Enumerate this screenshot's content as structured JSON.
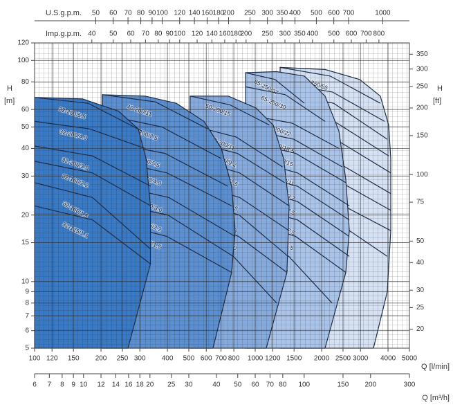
{
  "chart_data": {
    "type": "performance-range",
    "xscale": "log",
    "yscale": "log",
    "xlabel": "Q [l/min]",
    "xlim": [
      100,
      5000
    ],
    "xticks": [
      100,
      120,
      150,
      200,
      250,
      300,
      400,
      500,
      600,
      700,
      800,
      1000,
      1200,
      1500,
      2000,
      2500,
      3000,
      4000,
      5000
    ],
    "x2label": "Q [m³/h]",
    "x2lim": [
      6,
      300
    ],
    "x2ticks": [
      6,
      7,
      8,
      9,
      10,
      12,
      14,
      16,
      18,
      20,
      25,
      30,
      40,
      50,
      60,
      70,
      80,
      100,
      150,
      200,
      300
    ],
    "x3label": "U.S.g.p.m.",
    "x3lim": [
      26.4,
      1321
    ],
    "x3ticks": [
      50,
      60,
      70,
      80,
      90,
      100,
      120,
      140,
      160,
      180,
      200,
      250,
      300,
      350,
      400,
      500,
      600,
      700,
      1000
    ],
    "x4label": "Imp.g.p.m.",
    "x4lim": [
      22,
      1100
    ],
    "x4ticks": [
      40,
      50,
      60,
      70,
      80,
      90,
      100,
      120,
      140,
      160,
      180,
      200,
      250,
      300,
      350,
      400,
      500,
      600,
      700,
      800
    ],
    "ylabel": "H",
    "yunit": "[m]",
    "ylim": [
      5,
      120
    ],
    "yticks": [
      5,
      6,
      7,
      8,
      9,
      10,
      15,
      20,
      30,
      40,
      50,
      60,
      80,
      100,
      120
    ],
    "y2label": "H",
    "y2unit": "[ft]",
    "y2lim": [
      16.4,
      393.7
    ],
    "y2ticks": [
      20,
      25,
      30,
      40,
      50,
      75,
      100,
      150,
      200,
      250,
      300,
      350
    ],
    "grid": true,
    "minor_grid": true,
    "curve_color": "#1d2c48",
    "families": [
      {
        "color": "#3a79c4",
        "outline": {
          "q": [
            100,
            165,
            240,
            295,
            320,
            335,
            335,
            265,
            100
          ],
          "h": [
            68,
            67,
            59,
            49,
            36,
            22,
            12,
            5,
            5
          ]
        },
        "curves": [
          {
            "label": "32-200/5.5",
            "q": [
              100,
              175,
              306
            ],
            "h": [
              68,
              64,
              48
            ]
          },
          {
            "label": "32-200/4.0",
            "q": [
              100,
              178,
              317
            ],
            "h": [
              53,
              49,
              40
            ]
          },
          {
            "label": "32-200/3.0",
            "q": [
              100,
              183,
              336
            ],
            "h": [
              41,
              37,
              27
            ]
          },
          {
            "label": "32-160/2.2",
            "q": [
              100,
              183,
              336
            ],
            "h": [
              35,
              31,
              22
            ]
          },
          {
            "label": "32-160/1.5",
            "q": [
              100,
              183,
              336
            ],
            "h": [
              28,
              24,
              14
            ]
          },
          {
            "label": "32-125/1.1",
            "q": [
              100,
              183,
              336
            ],
            "h": [
              22,
              19,
              12
            ]
          }
        ]
      },
      {
        "color": "#5b8fd0",
        "outline": {
          "q": [
            203,
            317,
            439,
            586,
            702,
            782,
            811,
            782,
            644,
            203
          ],
          "h": [
            70,
            69,
            64,
            53,
            40,
            27,
            17,
            11,
            5,
            5
          ]
        },
        "curves": [
          {
            "label": "40-200/11",
            "q": [
              203,
              352,
              610
            ],
            "h": [
              70,
              65,
              49
            ]
          },
          {
            "label": "40-200/7.5",
            "q": [
              203,
              378,
              702
            ],
            "h": [
              57,
              50,
              36
            ]
          },
          {
            "label": "40-200/5.5",
            "q": [
              203,
              390,
              750
            ],
            "h": [
              43,
              38,
              27
            ]
          },
          {
            "label": "40-160/4.0",
            "q": [
              203,
              398,
              782
            ],
            "h": [
              36,
              31,
              22
            ]
          },
          {
            "label": "40-160/3.0",
            "q": [
              203,
              406,
              811
            ],
            "h": [
              28,
              24,
              16
            ]
          },
          {
            "label": "40-125/2.2",
            "q": [
              203,
              402,
              795
            ],
            "h": [
              23,
              20,
              13
            ]
          },
          {
            "label": "40-125/1.5",
            "q": [
              203,
              398,
              782
            ],
            "h": [
              19,
              16,
              11
            ]
          }
        ]
      },
      {
        "color": "#86aadc",
        "outline": {
          "q": [
            507,
            755,
            1007,
            1206,
            1345,
            1424,
            1393,
            1122,
            507
          ],
          "h": [
            69,
            69,
            61,
            51,
            36,
            22,
            11,
            5,
            5
          ]
        },
        "curves": [
          {
            "label": "50-200/15",
            "q": [
              507,
              767,
              1160
            ],
            "h": [
              69,
              63,
              51
            ]
          },
          {
            "label": "50-200/11",
            "q": [
              507,
              821,
              1330
            ],
            "h": [
              51,
              45,
              33
            ]
          },
          {
            "label": "50-200/9.2",
            "q": [
              507,
              830,
              1360
            ],
            "h": [
              43,
              38,
              28
            ]
          },
          {
            "label": "50-160/7.5",
            "q": [
              507,
              850,
              1424
            ],
            "h": [
              36,
              31,
              22
            ]
          },
          {
            "label": "50-160/5.5",
            "q": [
              507,
              850,
              1424
            ],
            "h": [
              28,
              24,
              17
            ]
          },
          {
            "label": "50-125/4.0",
            "q": [
              507,
              845,
              1410
            ],
            "h": [
              23,
              20,
              13
            ]
          },
          {
            "label": "50-125/3.0",
            "q": [
              507,
              840,
              1393
            ],
            "h": [
              19,
              16,
              11
            ]
          },
          {
            "label": "50-125/2.2",
            "q": [
              507,
              796,
              1251
            ],
            "h": [
              16,
              13,
              8
            ]
          }
        ]
      },
      {
        "color": "#aac3e8",
        "outline": {
          "q": [
            904,
            1251,
            1670,
            2073,
            2395,
            2574,
            2670,
            2574,
            2073,
            904
          ],
          "h": [
            88,
            89,
            85,
            69,
            48,
            29,
            17,
            11,
            5,
            5
          ]
        },
        "curves": [
          {
            "label": "65-250/37",
            "q": [
              904,
              1229,
              1670
            ],
            "h": [
              88,
              82,
              64
            ]
          },
          {
            "label": "65-250/30",
            "q": [
              904,
              1369,
              2073
            ],
            "h": [
              76,
              70,
              53
            ]
          },
          {
            "label": "65-200/22",
            "q": [
              904,
              1471,
              2395
            ],
            "h": [
              57,
              52,
              40
            ]
          },
          {
            "label": "65-200/18.5",
            "q": [
              904,
              1497,
              2480
            ],
            "h": [
              49,
              44,
              33
            ]
          },
          {
            "label": "65-200/15",
            "q": [
              904,
              1525,
              2574
            ],
            "h": [
              43,
              38,
              28
            ]
          },
          {
            "label": "65-160/11",
            "q": [
              904,
              1554,
              2670
            ],
            "h": [
              36,
              31,
              22
            ]
          },
          {
            "label": "65-160/9.2",
            "q": [
              904,
              1554,
              2670
            ],
            "h": [
              31,
              27,
              19
            ]
          },
          {
            "label": "65-160/7.5",
            "q": [
              904,
              1554,
              2670
            ],
            "h": [
              27,
              23,
              16
            ]
          },
          {
            "label": "65-125/7.5",
            "q": [
              904,
              1554,
              2670
            ],
            "h": [
              22,
              19,
              13
            ]
          },
          {
            "label": "65-125/5.5",
            "q": [
              904,
              1525,
              2574
            ],
            "h": [
              19,
              16,
              11
            ]
          },
          {
            "label": "65-125/4.0",
            "q": [
              904,
              1420,
              2230
            ],
            "h": [
              16,
              13,
              8
            ]
          }
        ]
      },
      {
        "color": "#d6e2f3",
        "outline": {
          "q": [
            1297,
            2073,
            2974,
            3690,
            4027,
            4114,
            4114,
            3968,
            3436,
            1297
          ],
          "h": [
            93,
            91,
            82,
            69,
            51,
            36,
            17,
            9,
            5,
            5
          ]
        },
        "curves": [
          {
            "label": "80-250/55",
            "q": [
              1297,
              2188,
              3690
            ],
            "h": [
              93,
              85,
              64
            ]
          },
          {
            "label": "80-250/45",
            "q": [
              1297,
              2237,
              3860
            ],
            "h": [
              79,
              72,
              53
            ]
          },
          {
            "label": "80-250/37",
            "q": [
              1297,
              2268,
              3968
            ],
            "h": [
              71,
              64,
              44
            ]
          },
          {
            "label": "80-200/37",
            "q": [
              1297,
              2285,
              4027
            ],
            "h": [
              59,
              53,
              37
            ]
          },
          {
            "label": "80-200/30",
            "q": [
              1297,
              2310,
              4114
            ],
            "h": [
              49,
              44,
              31
            ]
          },
          {
            "label": "80-160/22",
            "q": [
              1297,
              2310,
              4114
            ],
            "h": [
              40,
              35,
              25
            ]
          },
          {
            "label": "80-160/18.5",
            "q": [
              1297,
              2310,
              4114
            ],
            "h": [
              33,
              29,
              21
            ]
          },
          {
            "label": "80-160/15",
            "q": [
              1297,
              2310,
              4114
            ],
            "h": [
              27,
              23,
              17
            ]
          },
          {
            "label": "80-160/11",
            "q": [
              1297,
              2268,
              3968
            ],
            "h": [
              22,
              19,
              13
            ]
          }
        ]
      }
    ]
  }
}
